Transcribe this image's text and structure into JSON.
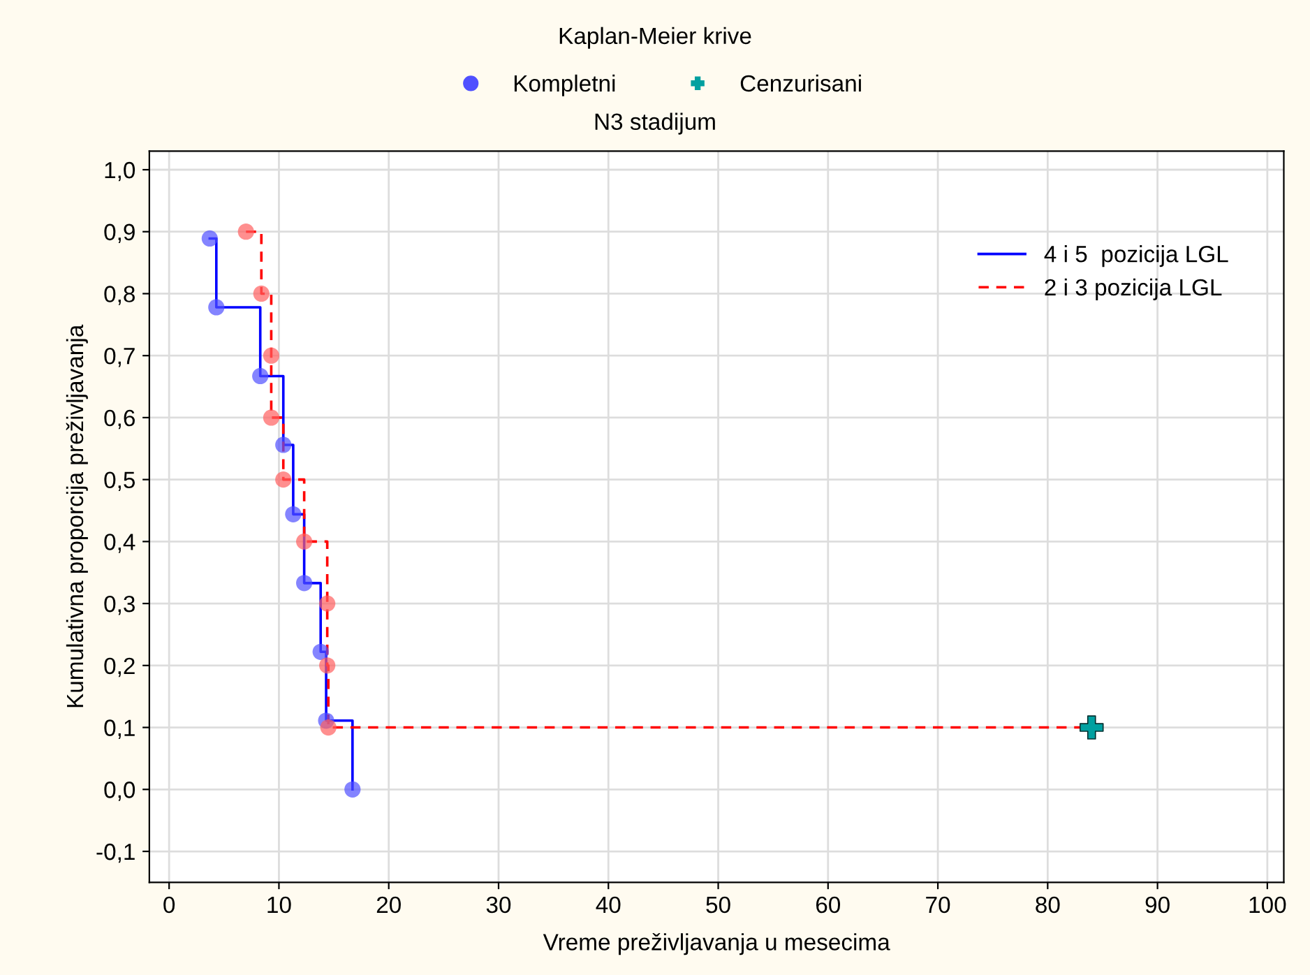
{
  "chart_data": {
    "type": "step",
    "title": "Kaplan-Meier krive",
    "subtitle": "N3 stadijum",
    "xlabel": "Vreme preživljavanja u mesecima",
    "ylabel": "Kumulativna proporcija preživljavanja",
    "xlim": [
      -1.8,
      101.5
    ],
    "ylim": [
      -0.15,
      1.03
    ],
    "xticks": [
      0,
      10,
      20,
      30,
      40,
      50,
      60,
      70,
      80,
      90,
      100
    ],
    "yticks": [
      {
        "value": -0.1,
        "label": "-0,1"
      },
      {
        "value": 0,
        "label": "0,0"
      },
      {
        "value": 0.1,
        "label": "0,1"
      },
      {
        "value": 0.2,
        "label": "0,2"
      },
      {
        "value": 0.3,
        "label": "0,3"
      },
      {
        "value": 0.4,
        "label": "0,4"
      },
      {
        "value": 0.5,
        "label": "0,5"
      },
      {
        "value": 0.6,
        "label": "0,6"
      },
      {
        "value": 0.7,
        "label": "0,7"
      },
      {
        "value": 0.8,
        "label": "0,8"
      },
      {
        "value": 0.9,
        "label": "0,9"
      },
      {
        "value": 1.0,
        "label": "1,0"
      }
    ],
    "grid": true,
    "legend": "top right",
    "series": [
      {
        "name": "4 i 5  pozicija LGL",
        "color": "#0000ff",
        "line_style": "solid",
        "x": [
          3.7,
          4.3,
          8.3,
          10.4,
          11.3,
          12.3,
          13.8,
          14.3,
          16.7
        ],
        "values": [
          0.889,
          0.778,
          0.667,
          0.556,
          0.444,
          0.333,
          0.222,
          0.111,
          0.0
        ]
      },
      {
        "name": "2 i 3 pozicija LGL",
        "color": "#ff0000",
        "line_style": "dashed",
        "x": [
          7.0,
          8.4,
          9.3,
          9.3,
          10.4,
          12.3,
          14.4,
          14.4,
          14.5,
          84.0
        ],
        "values": [
          0.9,
          0.8,
          0.7,
          0.6,
          0.5,
          0.4,
          0.3,
          0.2,
          0.1,
          0.1
        ]
      },
      {
        "type": "scatter",
        "name": "Kompletni",
        "marker": "circle",
        "color": "#5050ff",
        "x": [
          3.7,
          4.3,
          8.3,
          10.4,
          11.3,
          12.3,
          13.8,
          14.3,
          16.7,
          7.0,
          8.4,
          9.3,
          9.3,
          10.4,
          12.3,
          14.4,
          14.4,
          14.5
        ],
        "values": [
          0.889,
          0.778,
          0.667,
          0.556,
          0.444,
          0.333,
          0.222,
          0.111,
          0.0,
          0.9,
          0.8,
          0.7,
          0.6,
          0.5,
          0.4,
          0.3,
          0.2,
          0.1
        ],
        "colors": [
          "#5050ff",
          "#5050ff",
          "#5050ff",
          "#5050ff",
          "#5050ff",
          "#5050ff",
          "#5050ff",
          "#5050ff",
          "#5050ff",
          "#ff6060",
          "#ff6060",
          "#ff6060",
          "#ff6060",
          "#ff6060",
          "#ff6060",
          "#ff6060",
          "#ff6060",
          "#ff6060"
        ]
      },
      {
        "type": "scatter",
        "name": "Cenzurisani",
        "marker": "cross",
        "color": "#00a0a0",
        "x": [
          84.0
        ],
        "values": [
          0.1
        ]
      }
    ]
  }
}
